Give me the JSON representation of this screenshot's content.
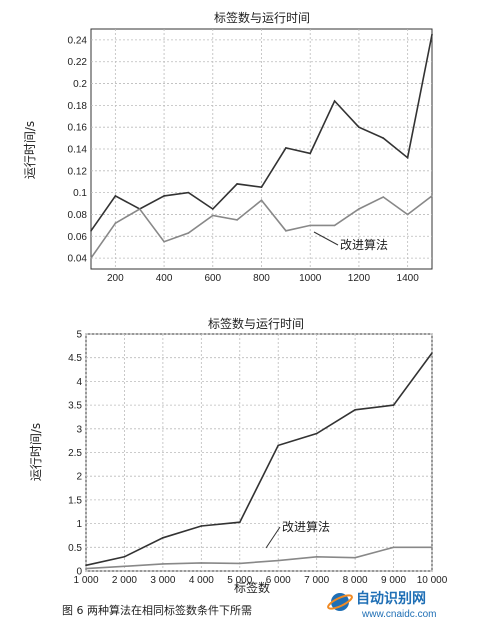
{
  "chart_data": [
    {
      "type": "line",
      "title": "标签数与运行时间",
      "xlabel": "",
      "ylabel": "运行时间/s",
      "xlim": [
        100,
        1500
      ],
      "ylim": [
        0.03,
        0.25
      ],
      "grid": true,
      "xticks": [
        200,
        400,
        600,
        800,
        1000,
        1200,
        1400
      ],
      "xtick_labels": [
        "200",
        "400",
        "600",
        "800",
        "1000",
        "1200",
        "1400"
      ],
      "yticks": [
        0.04,
        0.06,
        0.08,
        0.1,
        0.12,
        0.14,
        0.16,
        0.18,
        0.2,
        0.22,
        0.24
      ],
      "ytick_labels": [
        "0.04",
        "0.06",
        "0.08",
        "0.1",
        "0.12",
        "0.14",
        "0.16",
        "0.18",
        "0.2",
        "0.22",
        "0.24"
      ],
      "series": [
        {
          "name": "",
          "color": "#333333",
          "x": [
            100,
            200,
            300,
            400,
            500,
            600,
            700,
            800,
            900,
            1000,
            1100,
            1200,
            1300,
            1400,
            1500
          ],
          "y": [
            0.065,
            0.097,
            0.085,
            0.097,
            0.1,
            0.085,
            0.108,
            0.105,
            0.141,
            0.136,
            0.184,
            0.16,
            0.15,
            0.132,
            0.245
          ]
        },
        {
          "name": "改进算法",
          "color": "#888888",
          "x": [
            100,
            200,
            300,
            400,
            500,
            600,
            700,
            800,
            900,
            1000,
            1100,
            1200,
            1300,
            1400,
            1500
          ],
          "y": [
            0.04,
            0.072,
            0.085,
            0.055,
            0.063,
            0.079,
            0.075,
            0.093,
            0.065,
            0.07,
            0.07,
            0.085,
            0.096,
            0.08,
            0.097
          ]
        }
      ],
      "annotations": [
        {
          "text": "改进算法"
        }
      ]
    },
    {
      "type": "line",
      "title": "标签数与运行时间",
      "xlabel": "标签数",
      "ylabel": "运行时间/s",
      "xlim": [
        1000,
        10000
      ],
      "ylim": [
        0,
        5
      ],
      "grid": true,
      "xticks": [
        1000,
        2000,
        3000,
        4000,
        5000,
        6000,
        7000,
        8000,
        9000,
        10000
      ],
      "xtick_labels": [
        "1 000",
        "2 000",
        "3 000",
        "4 000",
        "5 000",
        "6 000",
        "7 000",
        "8 000",
        "9 000",
        "10 000"
      ],
      "yticks": [
        0,
        0.5,
        1,
        1.5,
        2,
        2.5,
        3,
        3.5,
        4,
        4.5,
        5
      ],
      "ytick_labels": [
        "0",
        "0.5",
        "1",
        "1.5",
        "2",
        "2.5",
        "3",
        "3.5",
        "4",
        "4.5",
        "5"
      ],
      "series": [
        {
          "name": "",
          "color": "#333333",
          "x": [
            1000,
            2000,
            3000,
            4000,
            5000,
            6000,
            7000,
            8000,
            9000,
            10000
          ],
          "y": [
            0.12,
            0.3,
            0.7,
            0.95,
            1.03,
            2.65,
            2.9,
            3.4,
            3.5,
            4.6
          ]
        },
        {
          "name": "改进算法",
          "color": "#888888",
          "x": [
            1000,
            2000,
            3000,
            4000,
            5000,
            6000,
            7000,
            8000,
            9000,
            10000
          ],
          "y": [
            0.05,
            0.1,
            0.15,
            0.17,
            0.16,
            0.22,
            0.3,
            0.28,
            0.5,
            0.5
          ]
        }
      ],
      "annotations": [
        {
          "text": "改进算法"
        }
      ]
    }
  ],
  "caption": "图 6 两种算法在相同标签数条件下所需",
  "watermark": {
    "text": "自动识别网",
    "url": "www.cnaidc.com"
  }
}
